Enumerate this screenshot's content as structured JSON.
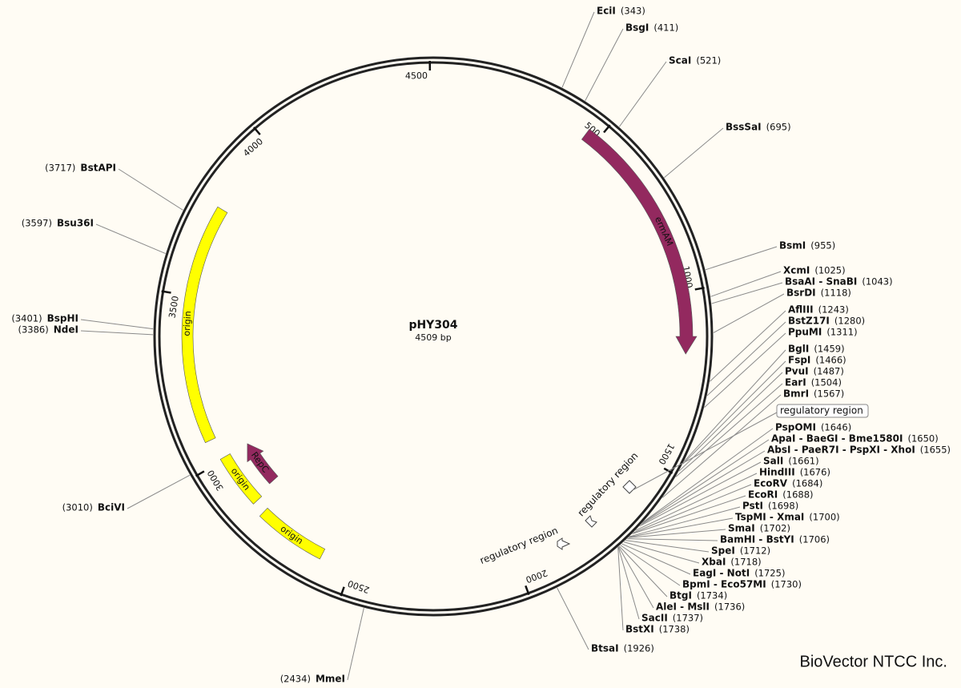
{
  "plasmid": {
    "name": "pHY304",
    "size": "4509 bp",
    "length": 4509,
    "ticks": [
      500,
      1000,
      1500,
      2000,
      2500,
      3000,
      3500,
      4000,
      4500
    ]
  },
  "features": [
    {
      "label": "ermAM",
      "color": "#93295f"
    },
    {
      "label": "RepC",
      "color": "#93295f"
    },
    {
      "label": "origin",
      "color": "#ffff00"
    },
    {
      "label": "origin",
      "color": "#ffff00"
    },
    {
      "label": "origin",
      "color": "#ffff00"
    },
    {
      "label": "regulatory region"
    },
    {
      "label": "regulatory region"
    },
    {
      "label": "regulatory region"
    }
  ],
  "enzymes": [
    {
      "name": "EciI",
      "position": "(343)",
      "color": "#111111"
    },
    {
      "name": "BsgI",
      "position": "(411)",
      "color": "#111111"
    },
    {
      "name": "ScaI",
      "position": "(521)",
      "color": "#2e8b2e"
    },
    {
      "name": "BssSaI",
      "position": "(695)",
      "color": "#111111"
    },
    {
      "name": "BsmI",
      "position": "(955)",
      "color": "#111111"
    },
    {
      "name": "XcmI",
      "position": "(1025)",
      "color": "#111111"
    },
    {
      "name": "BsaAI - SnaBI",
      "position": "(1043)",
      "color": "#2e8b2e"
    },
    {
      "name": "BsrDI",
      "position": "(1118)",
      "color": "#111111"
    },
    {
      "name": "AflIII",
      "position": "(1243)",
      "color": "#111111"
    },
    {
      "name": "BstZ17I",
      "position": "(1280)",
      "color": "#2e8b2e"
    },
    {
      "name": "PpuMI",
      "position": "(1311)",
      "color": "#111111"
    },
    {
      "name": "BglI",
      "position": "(1459)",
      "color": "#111111"
    },
    {
      "name": "FspI",
      "position": "(1466)",
      "color": "#2e8b2e"
    },
    {
      "name": "PvuI",
      "position": "(1487)",
      "color": "#111111"
    },
    {
      "name": "EarI",
      "position": "(1504)",
      "color": "#111111"
    },
    {
      "name": "BmrI",
      "position": "(1567)",
      "color": "#111111"
    },
    {
      "name": "PspOMI",
      "position": "(1646)",
      "color": "#111111"
    },
    {
      "name": "ApaI - BaeGI - Bme1580I",
      "position": "(1650)",
      "color": "#111111"
    },
    {
      "name": "AbsI - PaeR7I - PspXI - XhoI",
      "position": "(1655)",
      "color": "#111111"
    },
    {
      "name": "SalI",
      "position": "(1661)",
      "color": "#111111"
    },
    {
      "name": "HindIII",
      "position": "(1676)",
      "color": "#111111"
    },
    {
      "name": "EcoRV",
      "position": "(1684)",
      "color": "#2e8b2e"
    },
    {
      "name": "EcoRI",
      "position": "(1688)",
      "color": "#111111"
    },
    {
      "name": "PstI",
      "position": "(1698)",
      "color": "#111111"
    },
    {
      "name": "TspMI - XmaI",
      "position": "(1700)",
      "color": "#111111"
    },
    {
      "name": "SmaI",
      "position": "(1702)",
      "color": "#2e8b2e"
    },
    {
      "name": "BamHI - BstYI",
      "position": "(1706)",
      "color": "#111111"
    },
    {
      "name": "SpeI",
      "position": "(1712)",
      "color": "#111111"
    },
    {
      "name": "XbaI",
      "position": "(1718)",
      "color": "#111111"
    },
    {
      "name": "EagI - NotI",
      "position": "(1725)",
      "color": "#111111"
    },
    {
      "name": "BpmI - Eco57MI",
      "position": "(1730)",
      "color": "#111111"
    },
    {
      "name": "BtgI",
      "position": "(1734)",
      "color": "#111111"
    },
    {
      "name": "AleI - MslI",
      "position": "(1736)",
      "color": "#2e8b2e"
    },
    {
      "name": "SacII",
      "position": "(1737)",
      "color": "#111111"
    },
    {
      "name": "BstXI",
      "position": "(1738)",
      "color": "#111111"
    },
    {
      "name": "BtsaI",
      "position": "(1926)",
      "color": "#111111"
    },
    {
      "name": "MmeI",
      "position": "(2434)",
      "color": "#111111"
    },
    {
      "name": "BciVI",
      "position": "(3010)",
      "color": "#111111"
    },
    {
      "name": "NdeI",
      "position": "(3386)",
      "color": "#111111"
    },
    {
      "name": "BspHI",
      "position": "(3401)",
      "color": "#111111"
    },
    {
      "name": "Bsu36I",
      "position": "(3597)",
      "color": "#111111"
    },
    {
      "name": "BstAPI",
      "position": "(3717)",
      "color": "#111111"
    }
  ],
  "footer": {
    "brand": "BioVector NTCC Inc."
  }
}
